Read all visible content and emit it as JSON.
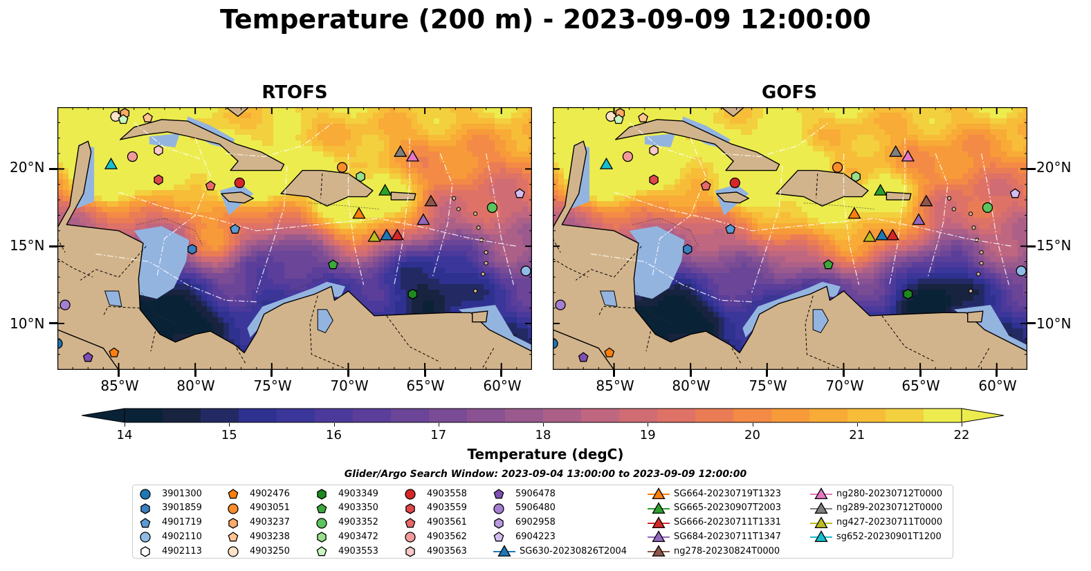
{
  "title": "Temperature (200 m) - 2023-09-09 12:00:00",
  "panels": [
    {
      "title": "RTOFS",
      "variant": "rtofs"
    },
    {
      "title": "GOFS",
      "variant": "gofs"
    }
  ],
  "lat_labels": [
    "20°N",
    "15°N",
    "10°N"
  ],
  "lat_values": [
    20,
    15,
    10
  ],
  "lon_labels": [
    "85°W",
    "80°W",
    "75°W",
    "70°W",
    "65°W",
    "60°W"
  ],
  "lon_values": [
    -85,
    -80,
    -75,
    -70,
    -65,
    -60
  ],
  "map_extent": {
    "lon": [
      -89,
      -58
    ],
    "lat": [
      7,
      24
    ]
  },
  "colorbar": {
    "label": "Temperature (degC)",
    "ticks": [
      "14",
      "15",
      "16",
      "17",
      "18",
      "19",
      "20",
      "21",
      "22"
    ],
    "vmin": 14,
    "vmax": 22,
    "colors": [
      "#0a2236",
      "#18233f",
      "#232a63",
      "#2e3190",
      "#3b3699",
      "#4b3a9b",
      "#5a3e9a",
      "#6a4598",
      "#7a4c95",
      "#8a5292",
      "#9a5a8e",
      "#ac6088",
      "#bf6680",
      "#d06c74",
      "#de7266",
      "#ea7c55",
      "#f38a45",
      "#f79a3a",
      "#f8ab36",
      "#f7bd38",
      "#f3d03e",
      "#ecec4f"
    ],
    "under_color": "#0a2236",
    "over_color": "#ecec4f"
  },
  "search_window": "Glider/Argo Search Window: 2023-09-04 13:00:00 to 2023-09-09 12:00:00",
  "legend": {
    "columns": [
      [
        {
          "label": "3901300",
          "marker": "circle",
          "color": "#1f77b4"
        },
        {
          "label": "3901859",
          "marker": "hexagon",
          "color": "#3a7fc0"
        },
        {
          "label": "4901719",
          "marker": "pentagon",
          "color": "#5a9bd5"
        },
        {
          "label": "4902110",
          "marker": "circle",
          "color": "#8fbce6"
        },
        {
          "label": "4902113",
          "marker": "hexagon",
          "color": "#ffffff"
        }
      ],
      [
        {
          "label": "4902476",
          "marker": "pentagon",
          "color": "#ff7f0e"
        },
        {
          "label": "4903051",
          "marker": "circle",
          "color": "#ff8c2a"
        },
        {
          "label": "4903237",
          "marker": "hexagon",
          "color": "#ffaa66"
        },
        {
          "label": "4903238",
          "marker": "pentagon",
          "color": "#ffc48f"
        },
        {
          "label": "4903250",
          "marker": "circle",
          "color": "#ffe3c9"
        }
      ],
      [
        {
          "label": "4903349",
          "marker": "hexagon",
          "color": "#1e8a1e"
        },
        {
          "label": "4903350",
          "marker": "pentagon",
          "color": "#3aa83a"
        },
        {
          "label": "4903352",
          "marker": "circle",
          "color": "#5cc45c"
        },
        {
          "label": "4903472",
          "marker": "hexagon",
          "color": "#98df8a"
        },
        {
          "label": "4903553",
          "marker": "pentagon",
          "color": "#c9f5c0"
        }
      ],
      [
        {
          "label": "4903558",
          "marker": "circle",
          "color": "#d62728"
        },
        {
          "label": "4903559",
          "marker": "hexagon",
          "color": "#e0474a"
        },
        {
          "label": "4903561",
          "marker": "pentagon",
          "color": "#e8686a"
        },
        {
          "label": "4903562",
          "marker": "circle",
          "color": "#f29a9a"
        },
        {
          "label": "4903563",
          "marker": "hexagon",
          "color": "#f9c8c8"
        }
      ],
      [
        {
          "label": "5906478",
          "marker": "pentagon",
          "color": "#7d4fb3"
        },
        {
          "label": "5906480",
          "marker": "circle",
          "color": "#a47fd1"
        },
        {
          "label": "6902958",
          "marker": "hexagon",
          "color": "#b89ae0"
        },
        {
          "label": "6904223",
          "marker": "pentagon",
          "color": "#d2bcf0"
        },
        {
          "label": "SG630-20230826T2004",
          "marker": "triangle-line",
          "color": "#1f77b4"
        }
      ],
      [
        {
          "label": "SG664-20230719T1323",
          "marker": "triangle-line",
          "color": "#ff7f0e"
        },
        {
          "label": "SG665-20230907T2003",
          "marker": "triangle-line",
          "color": "#2ca02c"
        },
        {
          "label": "SG666-20230711T1331",
          "marker": "triangle-line",
          "color": "#d62728"
        },
        {
          "label": "SG684-20230711T1347",
          "marker": "triangle-line",
          "color": "#9467bd"
        },
        {
          "label": "ng278-20230824T0000",
          "marker": "triangle-line",
          "color": "#8c564b"
        }
      ],
      [
        {
          "label": "ng280-20230712T0000",
          "marker": "triangle-line",
          "color": "#e377c2"
        },
        {
          "label": "ng289-20230712T0000",
          "marker": "triangle-line",
          "color": "#7f7f7f"
        },
        {
          "label": "ng427-20230711T0000",
          "marker": "triangle-line",
          "color": "#bcbd22"
        },
        {
          "label": "sg652-20230901T1200",
          "marker": "triangle-line",
          "color": "#17becf"
        }
      ]
    ]
  },
  "points": [
    {
      "id": "3901300",
      "marker": "circle",
      "color": "#1f77b4",
      "lon": -89.0,
      "lat": 8.7
    },
    {
      "id": "3901859",
      "marker": "hexagon",
      "color": "#3a7fc0",
      "lon": -80.2,
      "lat": 14.8
    },
    {
      "id": "4901719",
      "marker": "pentagon",
      "color": "#5a9bd5",
      "lon": -77.4,
      "lat": 16.1
    },
    {
      "id": "4902110",
      "marker": "circle",
      "color": "#8fbce6",
      "lon": -58.4,
      "lat": 13.4
    },
    {
      "id": "4902113",
      "marker": "hexagon",
      "color": "#ffffff",
      "lon": -69.2,
      "lat": 19.5
    },
    {
      "id": "4902476",
      "marker": "pentagon",
      "color": "#ff7f0e",
      "lon": -85.3,
      "lat": 8.1
    },
    {
      "id": "4903051",
      "marker": "circle",
      "color": "#ff8c2a",
      "lon": -70.4,
      "lat": 20.1
    },
    {
      "id": "4903237",
      "marker": "hexagon",
      "color": "#ffaa66",
      "lon": -84.6,
      "lat": 23.6
    },
    {
      "id": "4903238",
      "marker": "pentagon",
      "color": "#ffc48f",
      "lon": -83.1,
      "lat": 23.3
    },
    {
      "id": "4903250",
      "marker": "circle",
      "color": "#ffe3c9",
      "lon": -85.2,
      "lat": 23.4
    },
    {
      "id": "4903349",
      "marker": "hexagon",
      "color": "#1e8a1e",
      "lon": -65.8,
      "lat": 11.9
    },
    {
      "id": "4903350",
      "marker": "pentagon",
      "color": "#3aa83a",
      "lon": -71.0,
      "lat": 13.8
    },
    {
      "id": "4903352",
      "marker": "circle",
      "color": "#5cc45c",
      "lon": -60.6,
      "lat": 17.5
    },
    {
      "id": "4903472",
      "marker": "hexagon",
      "color": "#98df8a",
      "lon": -69.2,
      "lat": 19.5
    },
    {
      "id": "4903553",
      "marker": "pentagon",
      "color": "#c9f5c0",
      "lon": -84.7,
      "lat": 23.2
    },
    {
      "id": "4903558",
      "marker": "circle",
      "color": "#d62728",
      "lon": -77.1,
      "lat": 19.1
    },
    {
      "id": "4903559",
      "marker": "hexagon",
      "color": "#e0474a",
      "lon": -82.4,
      "lat": 19.3
    },
    {
      "id": "4903561",
      "marker": "pentagon",
      "color": "#e8686a",
      "lon": -79.0,
      "lat": 18.9
    },
    {
      "id": "4903562",
      "marker": "circle",
      "color": "#f29a9a",
      "lon": -84.1,
      "lat": 20.8
    },
    {
      "id": "4903563",
      "marker": "hexagon",
      "color": "#f9c8c8",
      "lon": -82.4,
      "lat": 21.2
    },
    {
      "id": "5906478",
      "marker": "pentagon",
      "color": "#7d4fb3",
      "lon": -87.0,
      "lat": 7.8
    },
    {
      "id": "5906480",
      "marker": "circle",
      "color": "#a47fd1",
      "lon": -88.5,
      "lat": 11.2
    },
    {
      "id": "6904223",
      "marker": "pentagon",
      "color": "#d2bcf0",
      "lon": -58.8,
      "lat": 18.4
    },
    {
      "id": "SG630-20230826T2004",
      "marker": "triangle",
      "color": "#1f77b4",
      "lon": -67.5,
      "lat": 15.7
    },
    {
      "id": "SG664-20230719T1323",
      "marker": "triangle",
      "color": "#ff7f0e",
      "lon": -69.3,
      "lat": 17.1
    },
    {
      "id": "SG665-20230907T2003",
      "marker": "triangle",
      "color": "#2ca02c",
      "lon": -67.6,
      "lat": 18.6
    },
    {
      "id": "SG666-20230711T1331",
      "marker": "triangle",
      "color": "#d62728",
      "lon": -66.8,
      "lat": 15.7
    },
    {
      "id": "SG684-20230711T1347",
      "marker": "triangle",
      "color": "#9467bd",
      "lon": -65.1,
      "lat": 16.7
    },
    {
      "id": "ng278-20230824T0000",
      "marker": "triangle",
      "color": "#8c564b",
      "lon": -64.6,
      "lat": 17.9
    },
    {
      "id": "ng280-20230712T0000",
      "marker": "triangle",
      "color": "#e377c2",
      "lon": -65.8,
      "lat": 20.8
    },
    {
      "id": "ng289-20230712T0000",
      "marker": "triangle",
      "color": "#7f7f7f",
      "lon": -66.6,
      "lat": 21.1
    },
    {
      "id": "ng427-20230711T0000",
      "marker": "triangle",
      "color": "#bcbd22",
      "lon": -68.3,
      "lat": 15.6
    },
    {
      "id": "sg652-20230901T1200",
      "marker": "triangle",
      "color": "#17becf",
      "lon": -85.5,
      "lat": 20.3
    }
  ],
  "colors": {
    "land": "#d2b48c",
    "shelf": "#94b4e0",
    "border": "#000000"
  }
}
